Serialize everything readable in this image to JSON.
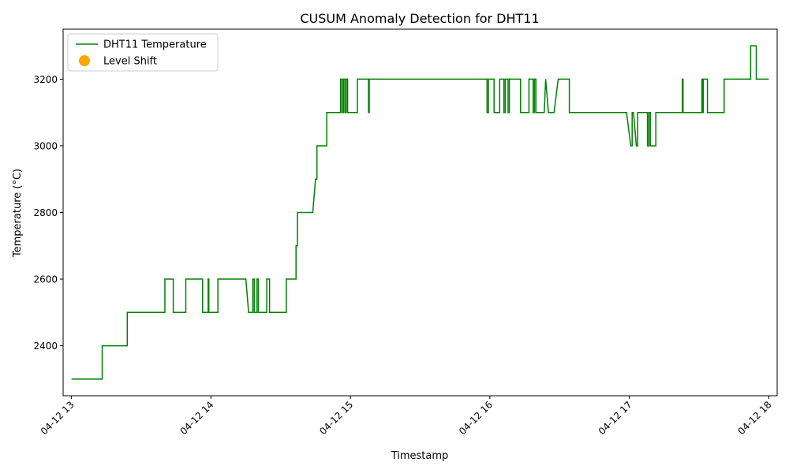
{
  "chart_data": {
    "type": "line",
    "title": "CUSUM Anomaly Detection for DHT11",
    "xlabel": "Timestamp",
    "ylabel": "Temperature (°C)",
    "xlim": [
      -0.06,
      5.06
    ],
    "ylim": [
      2250,
      3350
    ],
    "yticks": [
      2400,
      2600,
      2800,
      3000,
      3200
    ],
    "xticks": [
      {
        "value": 0,
        "label": "04-12 13"
      },
      {
        "value": 1,
        "label": "04-12 14"
      },
      {
        "value": 2,
        "label": "04-12 15"
      },
      {
        "value": 3,
        "label": "04-12 16"
      },
      {
        "value": 4,
        "label": "04-12 17"
      },
      {
        "value": 5,
        "label": "04-12 18"
      }
    ],
    "grid": false,
    "legend": {
      "placement": "top-left",
      "entries": [
        {
          "label": "DHT11 Temperature",
          "kind": "line",
          "color": "#008000"
        },
        {
          "label": "Level Shift",
          "kind": "marker",
          "color": "#ffa500"
        }
      ]
    },
    "series": [
      {
        "name": "DHT11 Temperature",
        "color": "#008000",
        "points": [
          [
            0.0,
            2300
          ],
          [
            0.22,
            2300
          ],
          [
            0.22,
            2400
          ],
          [
            0.4,
            2400
          ],
          [
            0.4,
            2500
          ],
          [
            0.67,
            2500
          ],
          [
            0.67,
            2600
          ],
          [
            0.73,
            2600
          ],
          [
            0.73,
            2500
          ],
          [
            0.82,
            2500
          ],
          [
            0.82,
            2600
          ],
          [
            0.94,
            2600
          ],
          [
            0.94,
            2500
          ],
          [
            0.98,
            2500
          ],
          [
            0.98,
            2600
          ],
          [
            0.985,
            2600
          ],
          [
            0.985,
            2500
          ],
          [
            1.05,
            2500
          ],
          [
            1.05,
            2600
          ],
          [
            1.25,
            2600
          ],
          [
            1.27,
            2500
          ],
          [
            1.3,
            2500
          ],
          [
            1.3,
            2600
          ],
          [
            1.31,
            2600
          ],
          [
            1.31,
            2500
          ],
          [
            1.33,
            2500
          ],
          [
            1.33,
            2600
          ],
          [
            1.34,
            2600
          ],
          [
            1.34,
            2500
          ],
          [
            1.4,
            2500
          ],
          [
            1.4,
            2600
          ],
          [
            1.42,
            2600
          ],
          [
            1.42,
            2500
          ],
          [
            1.54,
            2500
          ],
          [
            1.54,
            2600
          ],
          [
            1.61,
            2600
          ],
          [
            1.61,
            2700
          ],
          [
            1.62,
            2700
          ],
          [
            1.62,
            2800
          ],
          [
            1.73,
            2800
          ],
          [
            1.75,
            2900
          ],
          [
            1.76,
            2900
          ],
          [
            1.76,
            3000
          ],
          [
            1.83,
            3000
          ],
          [
            1.83,
            3100
          ],
          [
            1.93,
            3100
          ],
          [
            1.93,
            3200
          ],
          [
            1.94,
            3200
          ],
          [
            1.94,
            3100
          ],
          [
            1.95,
            3100
          ],
          [
            1.95,
            3200
          ],
          [
            1.96,
            3200
          ],
          [
            1.96,
            3100
          ],
          [
            1.97,
            3100
          ],
          [
            1.97,
            3200
          ],
          [
            1.98,
            3200
          ],
          [
            1.98,
            3100
          ],
          [
            2.05,
            3100
          ],
          [
            2.05,
            3200
          ],
          [
            2.13,
            3200
          ],
          [
            2.13,
            3100
          ],
          [
            2.135,
            3100
          ],
          [
            2.135,
            3200
          ],
          [
            2.98,
            3200
          ],
          [
            2.98,
            3100
          ],
          [
            2.99,
            3100
          ],
          [
            2.99,
            3200
          ],
          [
            3.03,
            3200
          ],
          [
            3.03,
            3100
          ],
          [
            3.07,
            3100
          ],
          [
            3.07,
            3200
          ],
          [
            3.1,
            3200
          ],
          [
            3.1,
            3100
          ],
          [
            3.11,
            3100
          ],
          [
            3.11,
            3200
          ],
          [
            3.13,
            3200
          ],
          [
            3.13,
            3100
          ],
          [
            3.14,
            3100
          ],
          [
            3.14,
            3200
          ],
          [
            3.22,
            3200
          ],
          [
            3.22,
            3100
          ],
          [
            3.28,
            3100
          ],
          [
            3.28,
            3200
          ],
          [
            3.31,
            3200
          ],
          [
            3.31,
            3100
          ],
          [
            3.32,
            3100
          ],
          [
            3.32,
            3200
          ],
          [
            3.33,
            3200
          ],
          [
            3.33,
            3100
          ],
          [
            3.39,
            3100
          ],
          [
            3.4,
            3200
          ],
          [
            3.42,
            3100
          ],
          [
            3.46,
            3100
          ],
          [
            3.49,
            3200
          ],
          [
            3.57,
            3200
          ],
          [
            3.57,
            3100
          ],
          [
            3.98,
            3100
          ],
          [
            4.01,
            3000
          ],
          [
            4.02,
            3000
          ],
          [
            4.02,
            3100
          ],
          [
            4.03,
            3100
          ],
          [
            4.05,
            3000
          ],
          [
            4.06,
            3000
          ],
          [
            4.06,
            3100
          ],
          [
            4.13,
            3100
          ],
          [
            4.13,
            3000
          ],
          [
            4.14,
            3000
          ],
          [
            4.14,
            3100
          ],
          [
            4.15,
            3100
          ],
          [
            4.15,
            3000
          ],
          [
            4.19,
            3000
          ],
          [
            4.19,
            3100
          ],
          [
            4.38,
            3100
          ],
          [
            4.38,
            3200
          ],
          [
            4.385,
            3200
          ],
          [
            4.385,
            3100
          ],
          [
            4.52,
            3100
          ],
          [
            4.52,
            3200
          ],
          [
            4.525,
            3200
          ],
          [
            4.525,
            3100
          ],
          [
            4.53,
            3100
          ],
          [
            4.53,
            3200
          ],
          [
            4.56,
            3200
          ],
          [
            4.56,
            3100
          ],
          [
            4.68,
            3100
          ],
          [
            4.68,
            3200
          ],
          [
            4.87,
            3200
          ],
          [
            4.87,
            3300
          ],
          [
            4.91,
            3300
          ],
          [
            4.91,
            3200
          ],
          [
            5.0,
            3200
          ]
        ]
      },
      {
        "name": "Level Shift",
        "color": "#ffa500",
        "points": []
      }
    ]
  }
}
